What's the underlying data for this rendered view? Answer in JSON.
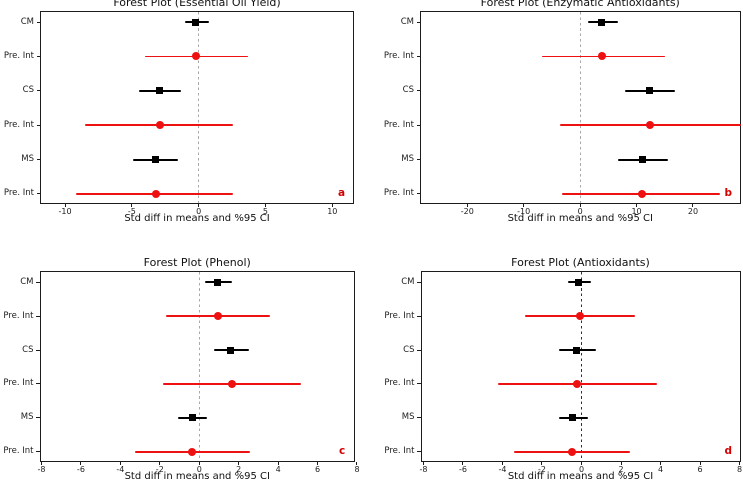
{
  "figure": {
    "background": "#ffffff",
    "marker_black": "#000000",
    "marker_red": "#ee1111",
    "panel_letter_color": "#d40000"
  },
  "chart_data": [
    {
      "type": "scatter",
      "subtype": "forest-plot",
      "title": "Forest Plot (Essential Oil Yield)",
      "xlabel": "Std diff in means and %95 CI",
      "panel_letter": "a",
      "xlim": [
        -11.8,
        11.7
      ],
      "xticks": [
        -10,
        -5,
        0,
        5,
        10
      ],
      "zero_line_color": "#a8a8a8",
      "categories": [
        "CM",
        "Pre. Int",
        "CS",
        "Pre. Int",
        "MS",
        "Pre. Int"
      ],
      "rows": [
        {
          "label": "CM",
          "marker": "square",
          "color": "#000000",
          "mean": -0.2,
          "ci_low": -1.0,
          "ci_high": 0.8
        },
        {
          "label": "Pre. Int",
          "marker": "circle",
          "color": "#ee1111",
          "mean": -0.2,
          "ci_low": -4.0,
          "ci_high": 3.7
        },
        {
          "label": "CS",
          "marker": "square",
          "color": "#000000",
          "mean": -2.9,
          "ci_low": -4.5,
          "ci_high": -1.35
        },
        {
          "label": "Pre. Int",
          "marker": "circle",
          "color": "#ee1111",
          "mean": -2.9,
          "ci_low": -8.5,
          "ci_high": 2.6
        },
        {
          "label": "MS",
          "marker": "square",
          "color": "#000000",
          "mean": -3.2,
          "ci_low": -4.9,
          "ci_high": -1.55
        },
        {
          "label": "Pre. Int",
          "marker": "circle",
          "color": "#ee1111",
          "mean": -3.2,
          "ci_low": -9.2,
          "ci_high": 2.6
        }
      ]
    },
    {
      "type": "scatter",
      "subtype": "forest-plot",
      "title": "Forest Plot (Enzymatic Antioxidants)",
      "xlabel": "Std diff in means and %95 CI",
      "panel_letter": "b",
      "xlim": [
        -28.2,
        28.6
      ],
      "xticks": [
        -20,
        -10,
        0,
        10,
        20
      ],
      "zero_line_color": "#a8a8a8",
      "categories": [
        "CM",
        "Pre. Int",
        "CS",
        "Pre. Int",
        "MS",
        "Pre. Int"
      ],
      "rows": [
        {
          "label": "CM",
          "marker": "square",
          "color": "#000000",
          "mean": 3.8,
          "ci_low": 1.4,
          "ci_high": 6.8
        },
        {
          "label": "Pre. Int",
          "marker": "circle",
          "color": "#ee1111",
          "mean": 3.8,
          "ci_low": -6.8,
          "ci_high": 15.0
        },
        {
          "label": "CS",
          "marker": "square",
          "color": "#000000",
          "mean": 12.3,
          "ci_low": 7.9,
          "ci_high": 16.9
        },
        {
          "label": "Pre. Int",
          "marker": "circle",
          "color": "#ee1111",
          "mean": 12.4,
          "ci_low": -3.5,
          "ci_high": 28.6
        },
        {
          "label": "MS",
          "marker": "square",
          "color": "#000000",
          "mean": 11.0,
          "ci_low": 6.8,
          "ci_high": 15.5
        },
        {
          "label": "Pre. Int",
          "marker": "circle",
          "color": "#ee1111",
          "mean": 11.0,
          "ci_low": -3.2,
          "ci_high": 24.8
        }
      ]
    },
    {
      "type": "scatter",
      "subtype": "forest-plot",
      "title": "Forest Plot (Phenol)",
      "xlabel": "Std diff in means and %95 CI",
      "panel_letter": "c",
      "xlim": [
        -8.05,
        7.95
      ],
      "xticks": [
        -8,
        -6,
        -4,
        -2,
        0,
        2,
        4,
        6,
        8
      ],
      "zero_line_color": "#a8a8a8",
      "categories": [
        "CM",
        "Pre. Int",
        "CS",
        "Pre. Int",
        "MS",
        "Pre. Int"
      ],
      "rows": [
        {
          "label": "CM",
          "marker": "square",
          "color": "#000000",
          "mean": 0.95,
          "ci_low": 0.3,
          "ci_high": 1.65
        },
        {
          "label": "Pre. Int",
          "marker": "circle",
          "color": "#ee1111",
          "mean": 0.95,
          "ci_low": -1.7,
          "ci_high": 3.6
        },
        {
          "label": "CS",
          "marker": "square",
          "color": "#000000",
          "mean": 1.6,
          "ci_low": 0.75,
          "ci_high": 2.5
        },
        {
          "label": "Pre. Int",
          "marker": "circle",
          "color": "#ee1111",
          "mean": 1.65,
          "ci_low": -1.85,
          "ci_high": 5.15
        },
        {
          "label": "MS",
          "marker": "square",
          "color": "#000000",
          "mean": -0.35,
          "ci_low": -1.1,
          "ci_high": 0.4
        },
        {
          "label": "Pre. Int",
          "marker": "circle",
          "color": "#ee1111",
          "mean": -0.35,
          "ci_low": -3.25,
          "ci_high": 2.55
        }
      ]
    },
    {
      "type": "scatter",
      "subtype": "forest-plot",
      "title": "Forest Plot (Antioxidants)",
      "xlabel": "Std diff in means and %95 CI",
      "panel_letter": "d",
      "xlim": [
        -8.1,
        8.1
      ],
      "xticks": [
        -8,
        -6,
        -4,
        -2,
        0,
        2,
        4,
        6,
        8
      ],
      "zero_line_color": "#303030",
      "categories": [
        "CM",
        "Pre. Int",
        "CS",
        "Pre. Int",
        "MS",
        "Pre. Int"
      ],
      "rows": [
        {
          "label": "CM",
          "marker": "square",
          "color": "#000000",
          "mean": -0.15,
          "ci_low": -0.7,
          "ci_high": 0.5
        },
        {
          "label": "Pre. Int",
          "marker": "circle",
          "color": "#ee1111",
          "mean": -0.1,
          "ci_low": -2.85,
          "ci_high": 2.7
        },
        {
          "label": "CS",
          "marker": "square",
          "color": "#000000",
          "mean": -0.25,
          "ci_low": -1.15,
          "ci_high": 0.75
        },
        {
          "label": "Pre. Int",
          "marker": "circle",
          "color": "#ee1111",
          "mean": -0.25,
          "ci_low": -4.25,
          "ci_high": 3.8
        },
        {
          "label": "MS",
          "marker": "square",
          "color": "#000000",
          "mean": -0.45,
          "ci_low": -1.15,
          "ci_high": 0.35
        },
        {
          "label": "Pre. Int",
          "marker": "circle",
          "color": "#ee1111",
          "mean": -0.5,
          "ci_low": -3.4,
          "ci_high": 2.45
        }
      ]
    }
  ]
}
